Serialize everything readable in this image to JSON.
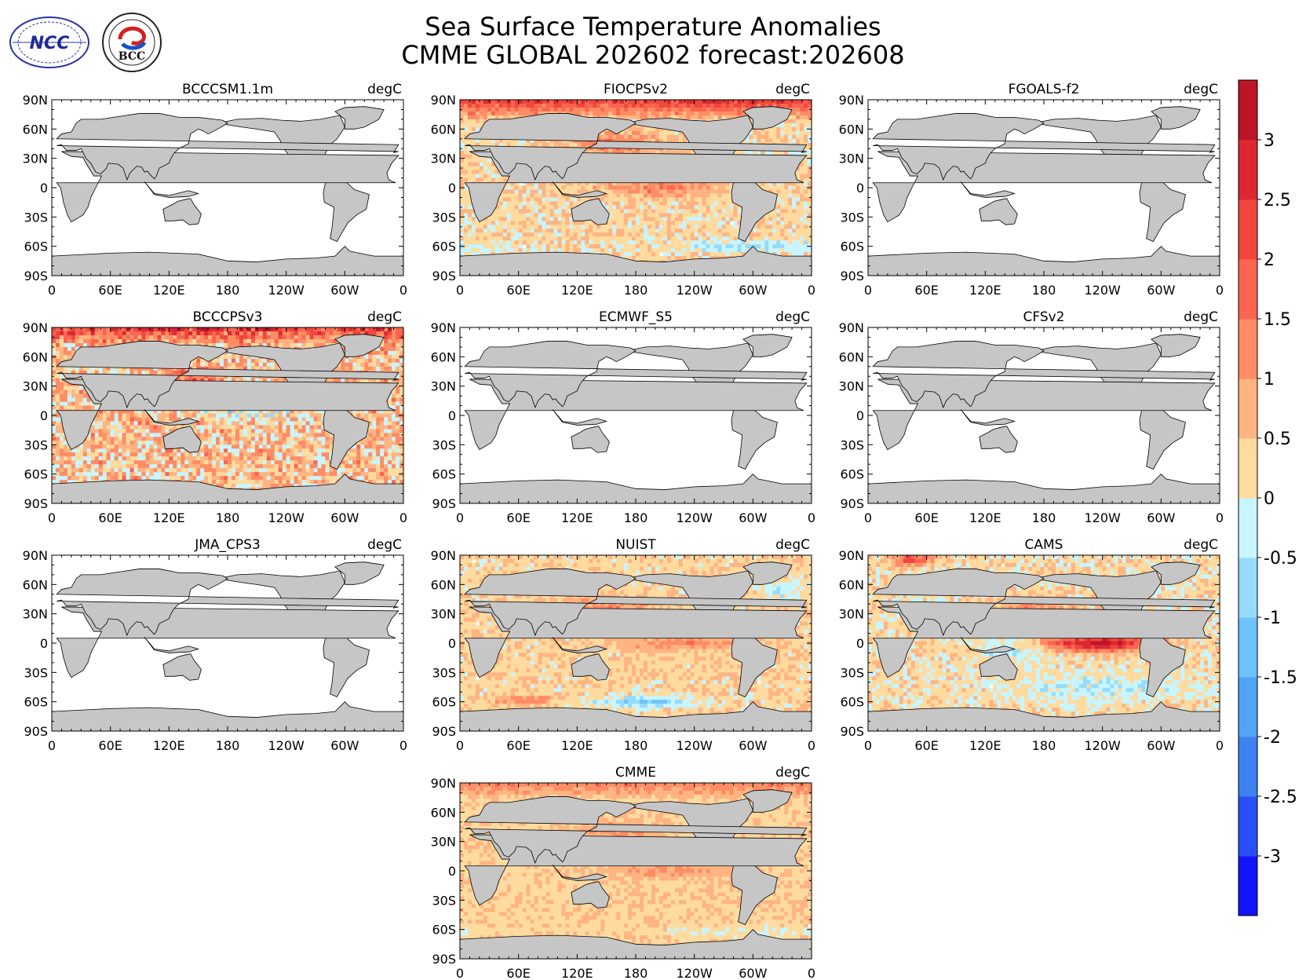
{
  "title": {
    "line1": "Sea Surface Temperature Anomalies",
    "line2": "CMME GLOBAL 202602 forecast:202608"
  },
  "logos": [
    {
      "name": "NCC",
      "text": "NCC"
    },
    {
      "name": "BCC",
      "text": "BCC"
    }
  ],
  "panels": [
    {
      "name": "BCCCSM1.1m",
      "unit": "degC",
      "field": "none"
    },
    {
      "name": "FIOCPSv2",
      "unit": "degC",
      "field": "warm"
    },
    {
      "name": "FGOALS-f2",
      "unit": "degC",
      "field": "none"
    },
    {
      "name": "BCCCPSv3",
      "unit": "degC",
      "field": "noisy"
    },
    {
      "name": "ECMWF_S5",
      "unit": "degC",
      "field": "none"
    },
    {
      "name": "CFSv2",
      "unit": "degC",
      "field": "none"
    },
    {
      "name": "JMA_CPS3",
      "unit": "degC",
      "field": "none"
    },
    {
      "name": "NUIST",
      "unit": "degC",
      "field": "nino"
    },
    {
      "name": "CAMS",
      "unit": "degC",
      "field": "strongnino"
    },
    {
      "name": "CMME",
      "unit": "degC",
      "field": "ensemble"
    }
  ],
  "axes": {
    "x_ticks": [
      "0",
      "60E",
      "120E",
      "180",
      "120W",
      "60W",
      "0"
    ],
    "y_ticks": [
      "90N",
      "60N",
      "30N",
      "0",
      "30S",
      "60S",
      "90S"
    ]
  },
  "colorbar": {
    "levels": [
      -3.5,
      -3,
      -2.5,
      -2,
      -1.5,
      -1,
      -0.5,
      0,
      0.5,
      1,
      1.5,
      2,
      2.5,
      3,
      3.5
    ],
    "colors": [
      "#1414ff",
      "#2850f5",
      "#3c82f0",
      "#50a5f5",
      "#6ec3fa",
      "#96dcfa",
      "#c8f5ff",
      "#ffdba0",
      "#ffb482",
      "#ff8c64",
      "#fa6450",
      "#f0463c",
      "#dc2832",
      "#be1428"
    ],
    "labels": [
      "3",
      "2.5",
      "2",
      "1.5",
      "1",
      "0.5",
      "0",
      "-0.5",
      "-1",
      "-1.5",
      "-2",
      "-2.5",
      "-3"
    ]
  }
}
